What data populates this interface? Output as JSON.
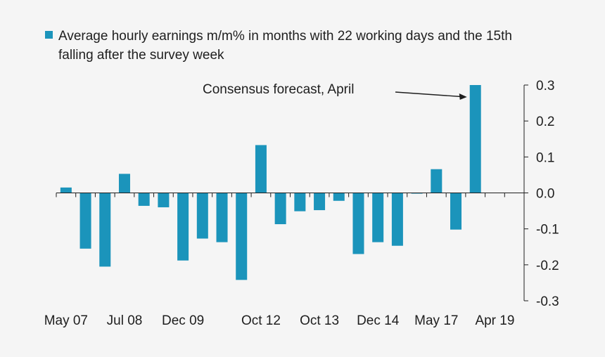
{
  "legend": {
    "label": "Average hourly earnings m/m% in months with 22 working days and the 15th falling after the survey week"
  },
  "annotation": {
    "text": "Consensus forecast, April"
  },
  "colors": {
    "bar": "#1b94bb",
    "background": "#f5f5f5",
    "axis": "#1e1e1e"
  },
  "chart_data": {
    "type": "bar",
    "title": "",
    "xlabel": "",
    "ylabel": "",
    "ylim": [
      -0.3,
      0.3
    ],
    "yticks": [
      "0.3",
      "0.2",
      "0.1",
      "0.0",
      "-0.1",
      "-0.2",
      "-0.3"
    ],
    "ytick_values": [
      0.3,
      0.2,
      0.1,
      0.0,
      -0.1,
      -0.2,
      -0.3
    ],
    "y_axis_side": "right",
    "grid": false,
    "legend_position": "top-left",
    "tick_labels": [
      "May 07",
      "Jul 08",
      "Dec 09",
      "Oct 12",
      "Oct 13",
      "Dec 14",
      "May 17",
      "Apr 19"
    ],
    "tick_label_at_bar": [
      0,
      3,
      6,
      10,
      13,
      16,
      19,
      22
    ],
    "values": [
      0.015,
      -0.155,
      -0.205,
      0.053,
      -0.036,
      -0.04,
      -0.188,
      -0.127,
      -0.137,
      -0.242,
      0.133,
      -0.087,
      -0.051,
      -0.048,
      -0.022,
      -0.17,
      -0.137,
      -0.147,
      -0.002,
      0.066,
      -0.102,
      0.3
    ],
    "total_slots": 24,
    "annotation_arrow_target_bar": 21
  }
}
